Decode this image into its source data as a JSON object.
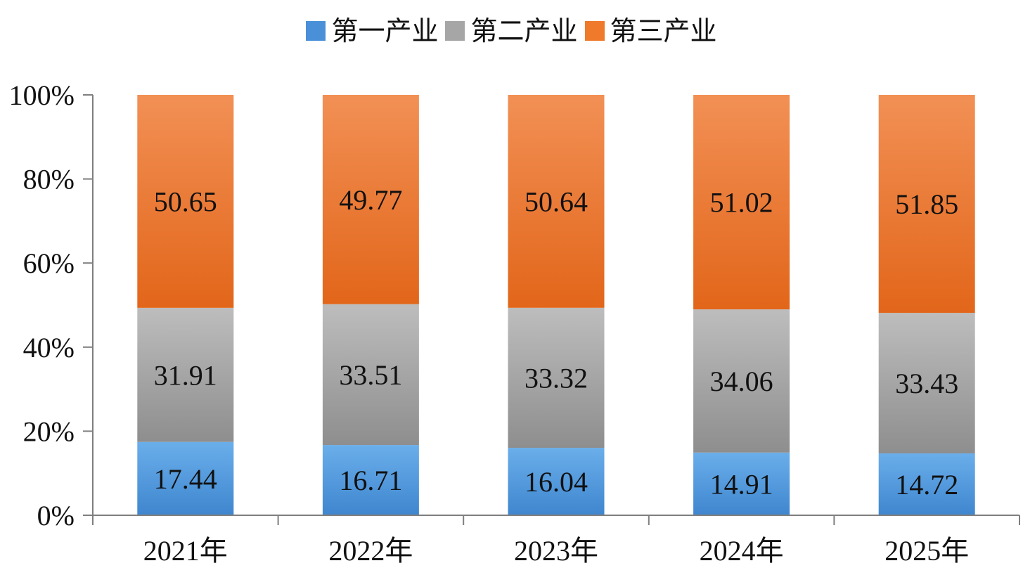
{
  "chart_data": {
    "type": "bar",
    "stacked": true,
    "normalized": true,
    "title": "",
    "xlabel": "",
    "ylabel": "",
    "categories": [
      "2021年",
      "2022年",
      "2023年",
      "2024年",
      "2025年"
    ],
    "series": [
      {
        "name": "第一产业",
        "color": "#4A90D9",
        "values": [
          17.44,
          16.71,
          16.04,
          14.91,
          14.72
        ]
      },
      {
        "name": "第二产业",
        "color": "#A6A6A6",
        "values": [
          31.91,
          33.51,
          33.32,
          34.06,
          33.43
        ]
      },
      {
        "name": "第三产业",
        "color": "#F07A2C",
        "values": [
          50.65,
          49.77,
          50.64,
          51.02,
          51.85
        ]
      }
    ],
    "yticks": [
      "0%",
      "20%",
      "40%",
      "60%",
      "80%",
      "100%"
    ],
    "ylim": [
      0,
      100
    ],
    "grid": false,
    "legend_position": "top-center"
  }
}
